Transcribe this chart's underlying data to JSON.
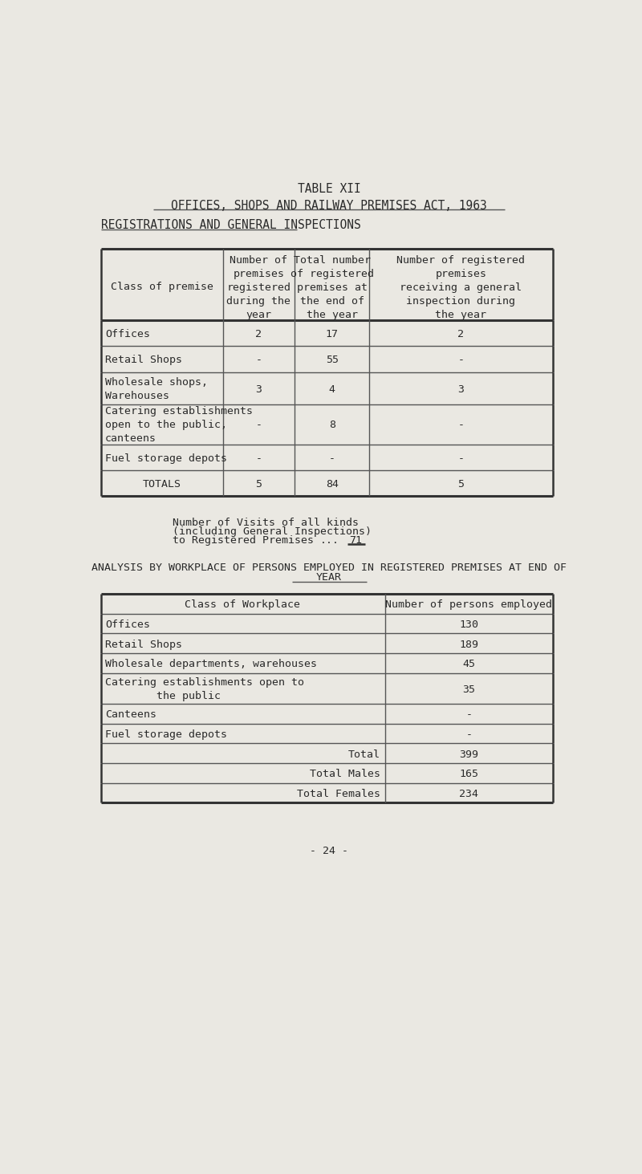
{
  "bg_color": "#eae8e2",
  "text_color": "#2a2a2a",
  "line_color": "#555555",
  "title1": "TABLE XII",
  "title2": "OFFICES, SHOPS AND RAILWAY PREMISES ACT, 1963",
  "subtitle1": "REGISTRATIONS AND GENERAL INSPECTIONS",
  "table1_col0_header": "Class of premise",
  "table1_col1_header": "Number of\npremises\nregistered\nduring the\nyear",
  "table1_col2_header": "Total number\nof registered\npremises at\nthe end of\nthe year",
  "table1_col3_header": "Number of registered\npremises\nreceiving a general\ninspection during\nthe year",
  "table1_rows": [
    [
      "Offices",
      "2",
      "17",
      "2"
    ],
    [
      "Retail Shops",
      "-",
      "55",
      "-"
    ],
    [
      "Wholesale shops,\nWarehouses",
      "3",
      "4",
      "3"
    ],
    [
      "Catering establishments\nopen to the public,\ncanteens",
      "-",
      "8",
      "-"
    ],
    [
      "Fuel storage depots",
      "-",
      "-",
      "-"
    ],
    [
      "TOTALS",
      "5",
      "84",
      "5"
    ]
  ],
  "table1_row_heights": [
    42,
    42,
    52,
    65,
    42,
    42
  ],
  "visits_line1": "Number of Visits of all kinds",
  "visits_line2": "(including General Inspections)",
  "visits_line3": "to Registered Premises",
  "visits_dots": "...",
  "visits_value": "71",
  "analysis_line1": "ANALYSIS BY WORKPLACE OF PERSONS EMPLOYED IN REGISTERED PREMISES AT END OF",
  "analysis_line2": "YEAR",
  "table2_col0_header": "Class of Workplace",
  "table2_col1_header": "Number of persons employed",
  "table2_rows": [
    [
      "Offices",
      "130"
    ],
    [
      "Retail Shops",
      "189"
    ],
    [
      "Wholesale departments, warehouses",
      "45"
    ],
    [
      "Catering establishments open to\n        the public",
      "35"
    ],
    [
      "Canteens",
      "-"
    ],
    [
      "Fuel storage depots",
      "-"
    ],
    [
      "Total",
      "399"
    ],
    [
      "Total Males",
      "165"
    ],
    [
      "Total Females",
      "234"
    ]
  ],
  "table2_row_heights": [
    32,
    32,
    32,
    50,
    32,
    32,
    32,
    32,
    32
  ],
  "page_number": "- 24 -",
  "font_size": 9.5,
  "title_font_size": 10.5
}
